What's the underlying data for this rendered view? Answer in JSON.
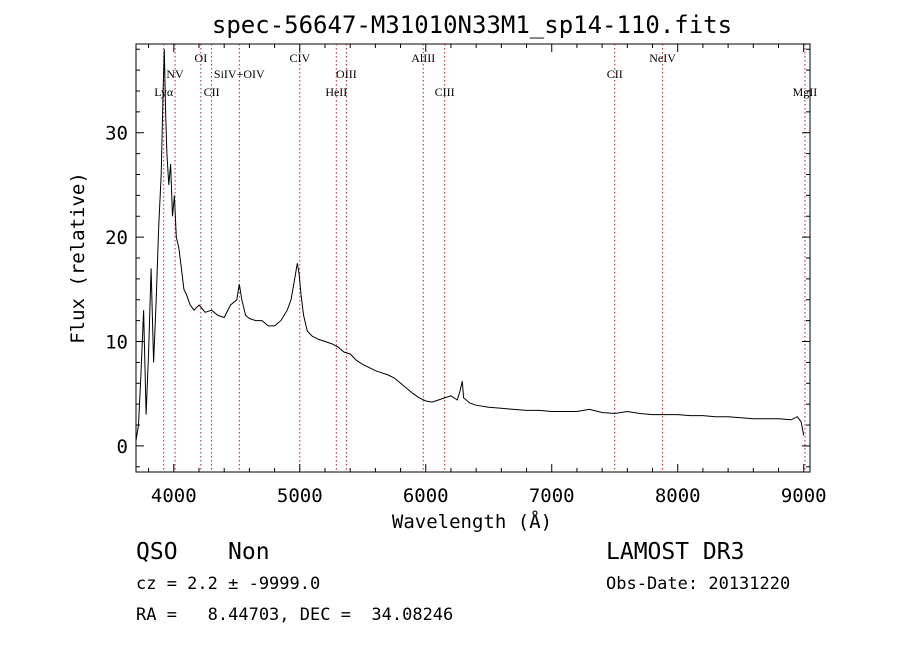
{
  "chart_data": {
    "type": "line",
    "title": "spec-56647-M31010N33M1_sp14-110.fits",
    "xlabel": "Wavelength (Å)",
    "ylabel": "Flux (relative)",
    "xlim": [
      3700,
      9050
    ],
    "ylim": [
      -2.5,
      38.5
    ],
    "xticks": [
      4000,
      5000,
      6000,
      7000,
      8000,
      9000
    ],
    "yticks": [
      0,
      10,
      20,
      30
    ],
    "grid": false,
    "series": [
      {
        "color": "#000000",
        "x": [
          3700,
          3720,
          3740,
          3760,
          3780,
          3800,
          3820,
          3840,
          3860,
          3880,
          3900,
          3915,
          3925,
          3935,
          3945,
          3960,
          3975,
          3990,
          4005,
          4020,
          4040,
          4060,
          4080,
          4100,
          4130,
          4160,
          4200,
          4250,
          4300,
          4350,
          4400,
          4450,
          4500,
          4520,
          4540,
          4570,
          4600,
          4650,
          4700,
          4750,
          4800,
          4850,
          4900,
          4930,
          4960,
          4980,
          4995,
          5010,
          5030,
          5060,
          5100,
          5150,
          5200,
          5250,
          5300,
          5350,
          5400,
          5450,
          5500,
          5550,
          5600,
          5650,
          5700,
          5750,
          5800,
          5850,
          5900,
          5950,
          6000,
          6050,
          6100,
          6150,
          6200,
          6250,
          6270,
          6290,
          6300,
          6350,
          6400,
          6500,
          6600,
          6700,
          6800,
          6900,
          7000,
          7100,
          7200,
          7250,
          7300,
          7400,
          7500,
          7600,
          7700,
          7800,
          7900,
          8000,
          8100,
          8200,
          8300,
          8400,
          8500,
          8600,
          8700,
          8800,
          8900,
          8950,
          8980,
          9000
        ],
        "y": [
          0.5,
          2,
          7,
          13,
          3,
          9,
          17,
          8,
          14,
          21,
          26,
          34,
          38,
          32,
          28,
          25,
          27,
          22,
          24,
          20,
          19,
          17,
          15,
          14.5,
          13.5,
          13,
          13.5,
          12.8,
          13,
          12.5,
          12.3,
          13.5,
          14,
          15.5,
          14,
          12.5,
          12.2,
          12,
          12,
          11.5,
          11.5,
          12,
          13,
          14,
          16,
          17.5,
          16.5,
          14.5,
          12.5,
          11,
          10.5,
          10.2,
          10,
          9.8,
          9.5,
          9,
          8.8,
          8.2,
          7.8,
          7.5,
          7.2,
          7,
          6.8,
          6.5,
          6,
          5.5,
          5,
          4.6,
          4.3,
          4.2,
          4.4,
          4.6,
          4.8,
          4.4,
          5.2,
          6.2,
          4.6,
          4.1,
          3.9,
          3.7,
          3.6,
          3.5,
          3.4,
          3.4,
          3.3,
          3.3,
          3.3,
          3.4,
          3.5,
          3.2,
          3.1,
          3.3,
          3.1,
          3,
          3,
          3,
          2.9,
          2.9,
          2.8,
          2.8,
          2.7,
          2.6,
          2.6,
          2.6,
          2.5,
          2.8,
          2.3,
          1
        ]
      }
    ],
    "lines": [
      {
        "label": "Lyα",
        "x": 3920,
        "row": 3
      },
      {
        "label": "NV",
        "x": 4010,
        "row": 2
      },
      {
        "label": "OI",
        "x": 4215,
        "row": 1
      },
      {
        "label": "CII",
        "x": 4300,
        "row": 3
      },
      {
        "label": "SiIV+OIV",
        "x": 4520,
        "row": 2
      },
      {
        "label": "CIV",
        "x": 5000,
        "row": 1
      },
      {
        "label": "HeII",
        "x": 5290,
        "row": 3
      },
      {
        "label": "OIII",
        "x": 5370,
        "row": 2
      },
      {
        "label": "AlIII",
        "x": 5980,
        "row": 1
      },
      {
        "label": "CIII",
        "x": 6150,
        "row": 3
      },
      {
        "label": "CII",
        "x": 7500,
        "row": 2
      },
      {
        "label": "NeIV",
        "x": 7880,
        "row": 1
      },
      {
        "label": "MgII",
        "x": 9010,
        "row": 3
      }
    ]
  },
  "footer": {
    "class_label": "QSO",
    "subclass_label": "Non",
    "survey_label": "LAMOST DR3",
    "cz_line": "cz = 2.2 ± -9999.0",
    "obs_date_line": "Obs-Date: 20131220",
    "coords_line": "RA =   8.44703, DEC =  34.08246"
  }
}
